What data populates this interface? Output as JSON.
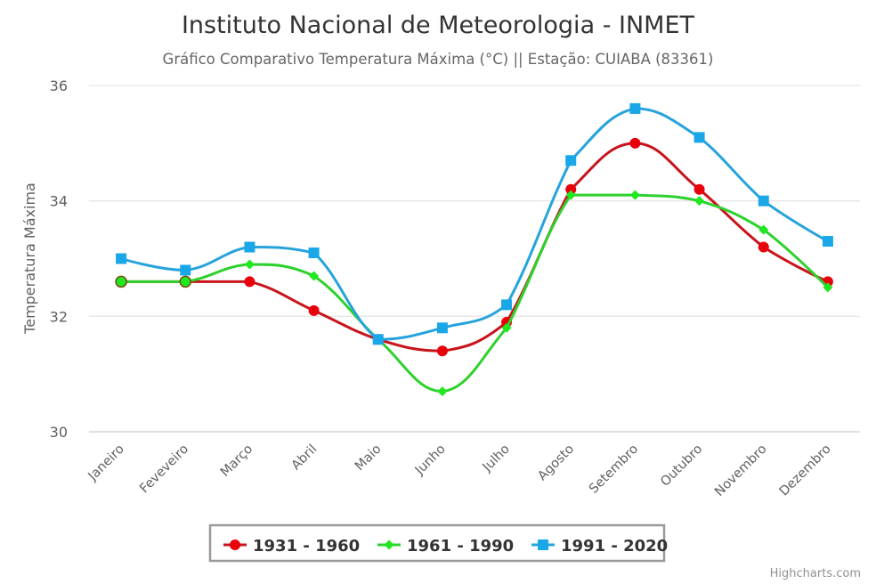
{
  "chart_data": {
    "type": "line",
    "title": "Instituto Nacional de Meteorologia - INMET",
    "subtitle": "Gráfico Comparativo Temperatura Máxima (°C) || Estação: CUIABA (83361)",
    "xlabel": "",
    "ylabel": "Temperatura Máxima",
    "ylim": [
      30,
      36
    ],
    "yticks": [
      "30",
      "32",
      "34",
      "36"
    ],
    "ytick_values": [
      30,
      32,
      34,
      36
    ],
    "grid": true,
    "smooth": true,
    "legend_position": "bottom-center",
    "categories": [
      "Janeiro",
      "Feveveiro",
      "Março",
      "Abril",
      "Maio",
      "Junho",
      "Julho",
      "Agosto",
      "Setembro",
      "Outubro",
      "Novembro",
      "Dezembro"
    ],
    "series": [
      {
        "name": "1931 - 1960",
        "color": "#e8000b",
        "line_color": "#c8141c",
        "marker": "circle",
        "values": [
          32.6,
          32.6,
          32.6,
          32.1,
          31.6,
          31.4,
          31.9,
          34.2,
          35.0,
          34.2,
          33.2,
          32.6
        ]
      },
      {
        "name": "1961 - 1990",
        "color": "#1ee81e",
        "line_color": "#2ed12e",
        "marker": "diamond",
        "values": [
          32.6,
          32.6,
          32.9,
          32.7,
          31.6,
          30.7,
          31.8,
          34.1,
          34.1,
          34.0,
          33.5,
          32.5
        ]
      },
      {
        "name": "1991 - 2020",
        "color": "#1aa7e8",
        "line_color": "#27a3dc",
        "marker": "square",
        "values": [
          33.0,
          32.8,
          33.2,
          33.1,
          31.6,
          31.8,
          32.2,
          34.7,
          35.6,
          35.1,
          34.0,
          33.3
        ]
      }
    ],
    "credits": "Highcharts.com"
  }
}
